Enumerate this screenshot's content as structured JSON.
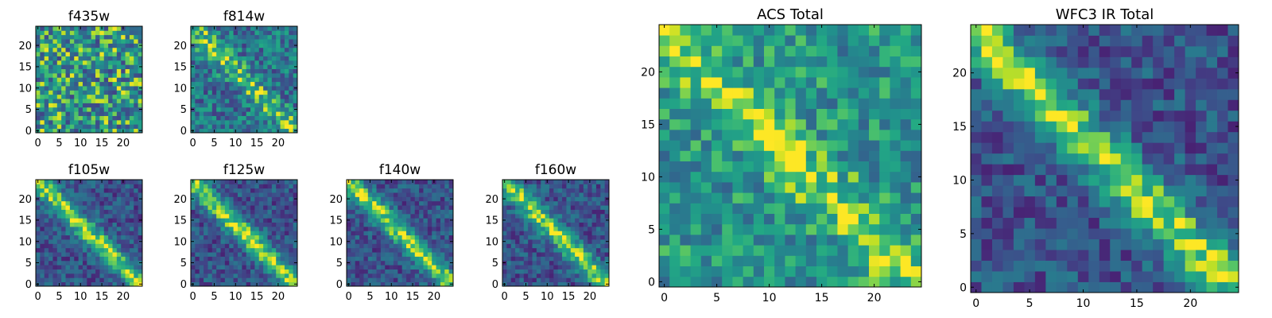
{
  "figure": {
    "background": "#ffffff"
  },
  "chart_data": [
    {
      "type": "heatmap",
      "title": "f435w",
      "grid_size": 25,
      "xlim": [
        0,
        24
      ],
      "ylim": [
        0,
        24
      ],
      "xticks": [
        0,
        5,
        10,
        15,
        20
      ],
      "yticks": [
        0,
        5,
        10,
        15,
        20
      ],
      "colormap": "viridis",
      "pattern": "noise"
    },
    {
      "type": "heatmap",
      "title": "f814w",
      "grid_size": 25,
      "xlim": [
        0,
        24
      ],
      "ylim": [
        0,
        24
      ],
      "xticks": [
        0,
        5,
        10,
        15,
        20
      ],
      "yticks": [
        0,
        5,
        10,
        15,
        20
      ],
      "colormap": "viridis",
      "pattern": "diagonal-weak"
    },
    {
      "type": "heatmap",
      "title": "f105w",
      "grid_size": 25,
      "xlim": [
        0,
        24
      ],
      "ylim": [
        0,
        24
      ],
      "xticks": [
        0,
        5,
        10,
        15,
        20
      ],
      "yticks": [
        0,
        5,
        10,
        15,
        20
      ],
      "colormap": "viridis",
      "pattern": "diagonal"
    },
    {
      "type": "heatmap",
      "title": "f125w",
      "grid_size": 25,
      "xlim": [
        0,
        24
      ],
      "ylim": [
        0,
        24
      ],
      "xticks": [
        0,
        5,
        10,
        15,
        20
      ],
      "yticks": [
        0,
        5,
        10,
        15,
        20
      ],
      "colormap": "viridis",
      "pattern": "diagonal"
    },
    {
      "type": "heatmap",
      "title": "f140w",
      "grid_size": 25,
      "xlim": [
        0,
        24
      ],
      "ylim": [
        0,
        24
      ],
      "xticks": [
        0,
        5,
        10,
        15,
        20
      ],
      "yticks": [
        0,
        5,
        10,
        15,
        20
      ],
      "colormap": "viridis",
      "pattern": "diagonal"
    },
    {
      "type": "heatmap",
      "title": "f160w",
      "grid_size": 25,
      "xlim": [
        0,
        24
      ],
      "ylim": [
        0,
        24
      ],
      "xticks": [
        0,
        5,
        10,
        15,
        20
      ],
      "yticks": [
        0,
        5,
        10,
        15,
        20
      ],
      "colormap": "viridis",
      "pattern": "diagonal"
    },
    {
      "type": "heatmap",
      "title": "ACS Total",
      "grid_size": 25,
      "xlim": [
        0,
        24
      ],
      "ylim": [
        0,
        24
      ],
      "xticks": [
        0,
        5,
        10,
        15,
        20
      ],
      "yticks": [
        0,
        5,
        10,
        15,
        20
      ],
      "colormap": "viridis",
      "pattern": "bright-diagonal"
    },
    {
      "type": "heatmap",
      "title": "WFC3 IR Total",
      "grid_size": 25,
      "xlim": [
        0,
        24
      ],
      "ylim": [
        0,
        24
      ],
      "xticks": [
        0,
        5,
        10,
        15,
        20
      ],
      "yticks": [
        0,
        5,
        10,
        15,
        20
      ],
      "colormap": "viridis",
      "pattern": "diagonal"
    }
  ]
}
